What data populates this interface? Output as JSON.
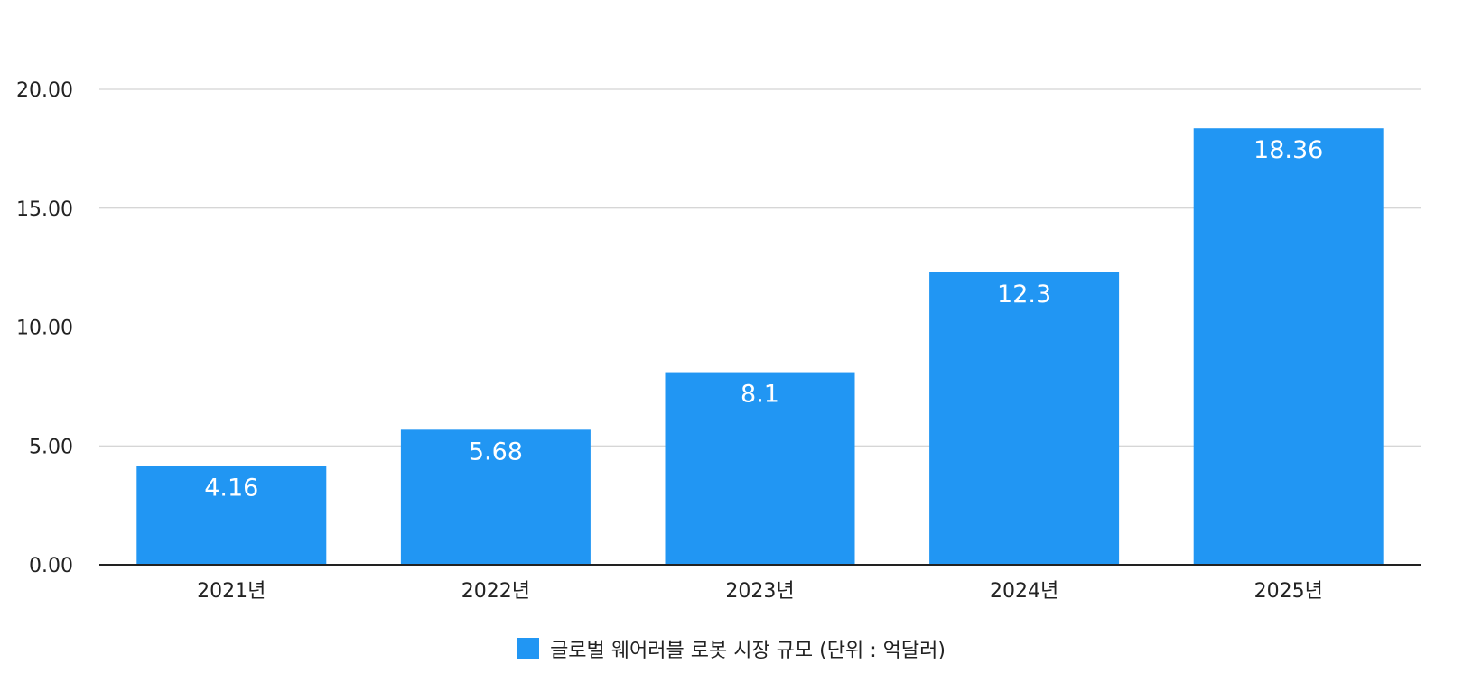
{
  "chart_data": {
    "type": "bar",
    "categories": [
      "2021년",
      "2022년",
      "2023년",
      "2024년",
      "2025년"
    ],
    "series": [
      {
        "name": "글로벌 웨어러블 로봇 시장 규모 (단위 : 억달러)",
        "values": [
          4.16,
          5.68,
          8.1,
          12.3,
          18.36
        ],
        "labels": [
          "4.16",
          "5.68",
          "8.1",
          "12.3",
          "18.36"
        ],
        "color": "#2196f3"
      }
    ],
    "yticks": [
      "0.00",
      "5.00",
      "10.00",
      "15.00",
      "20.00"
    ],
    "ylim": [
      0,
      20
    ],
    "grid": true,
    "legend_position": "bottom"
  }
}
